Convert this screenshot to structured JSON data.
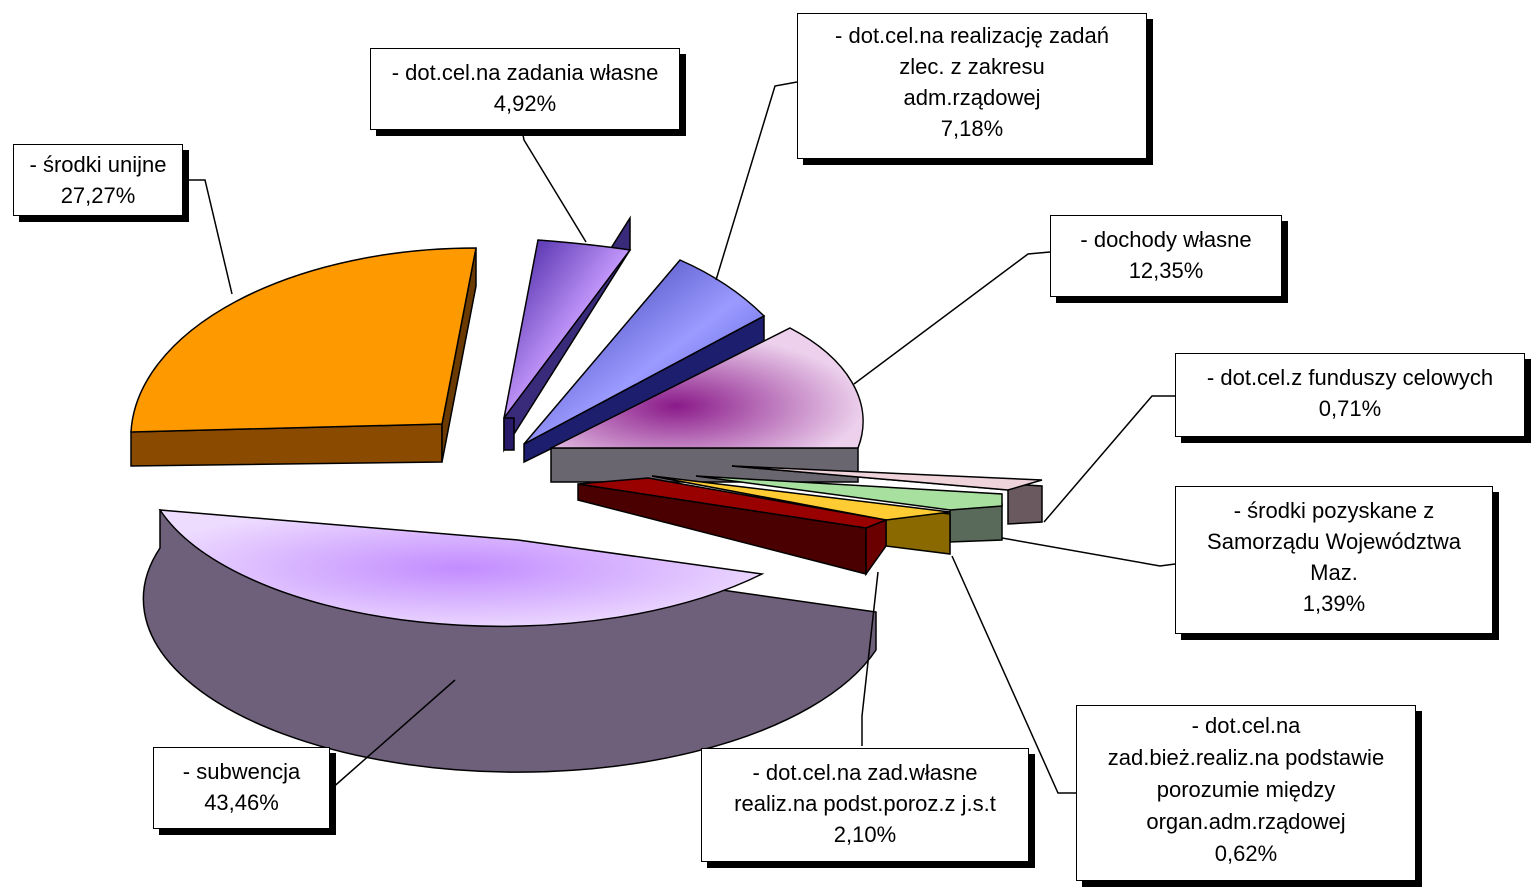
{
  "chart_data": {
    "type": "pie",
    "style": "3d-exploded",
    "legend": "none",
    "slices": [
      {
        "label_lines": [
          "- subwencja"
        ],
        "value_text": "43,46%",
        "value": 43.46,
        "color": "#d6b8ff"
      },
      {
        "label_lines": [
          "- środki unijne"
        ],
        "value_text": "27,27%",
        "value": 27.27,
        "color": "#ff9900"
      },
      {
        "label_lines": [
          "- dot.cel.na zadania własne"
        ],
        "value_text": "4,92%",
        "value": 4.92,
        "color": "#b98cff"
      },
      {
        "label_lines": [
          "- dot.cel.na realizację zadań",
          "zlec. z zakresu",
          "adm.rządowej"
        ],
        "value_text": "7,18%",
        "value": 7.18,
        "color": "#8c8cff"
      },
      {
        "label_lines": [
          "- dochody własne"
        ],
        "value_text": "12,35%",
        "value": 12.35,
        "color": "#e8c8e8"
      },
      {
        "label_lines": [
          "- dot.cel.z funduszy celowych"
        ],
        "value_text": "0,71%",
        "value": 0.71,
        "color": "#f0d8e0"
      },
      {
        "label_lines": [
          "- środki pozyskane z",
          "Samorządu Województwa",
          "Maz."
        ],
        "value_text": "1,39%",
        "value": 1.39,
        "color": "#99dd99"
      },
      {
        "label_lines": [
          "- dot.cel.na",
          "zad.bież.realiz.na podstawie",
          "porozumie między",
          "organ.adm.rządowej"
        ],
        "value_text": "0,62%",
        "value": 0.62,
        "color": "#ffcc33"
      },
      {
        "label_lines": [
          "- dot.cel.na zad.własne",
          "realiz.na podst.poroz.z j.s.t"
        ],
        "value_text": "2,10%",
        "value": 2.1,
        "color": "#990000"
      }
    ]
  }
}
